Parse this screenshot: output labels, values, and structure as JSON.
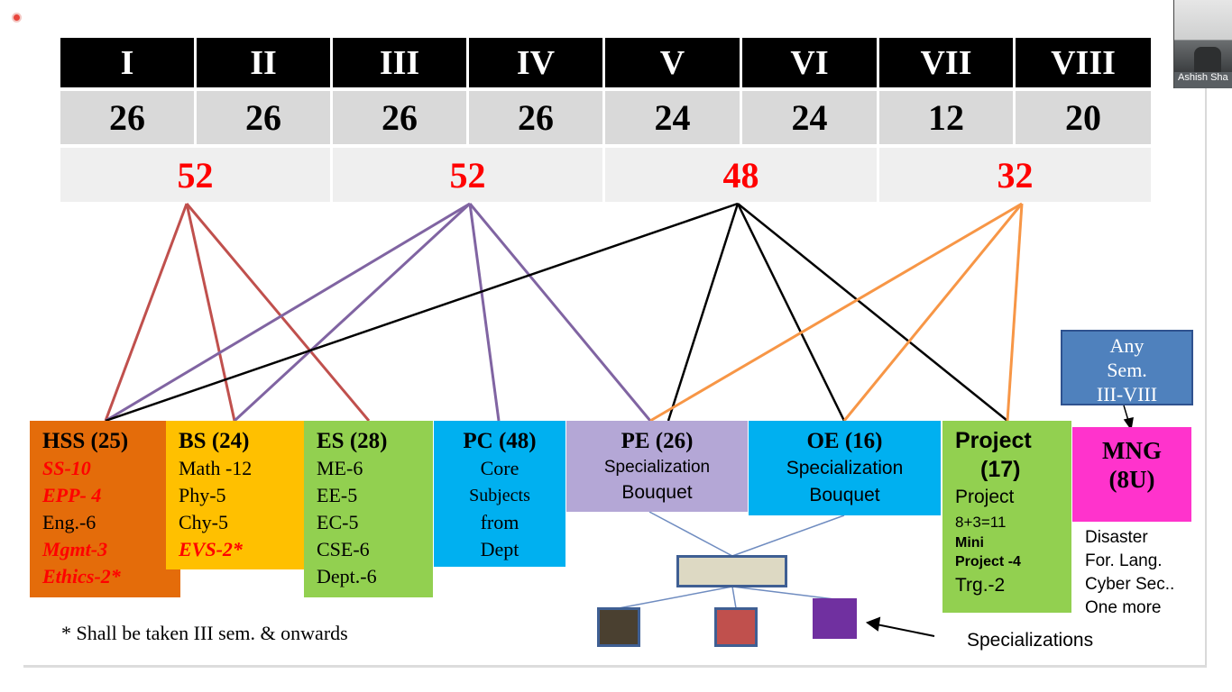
{
  "semesters": [
    "I",
    "II",
    "III",
    "IV",
    "V",
    "VI",
    "VII",
    "VIII"
  ],
  "credits": [
    "26",
    "26",
    "26",
    "26",
    "24",
    "24",
    "12",
    "20"
  ],
  "year_totals": [
    "52",
    "52",
    "48",
    "32"
  ],
  "categories": {
    "hss": {
      "title": "HSS (25)",
      "items": [
        "SS-10",
        "EPP- 4",
        "Eng.-6",
        "Mgmt-3",
        "Ethics-2*"
      ]
    },
    "bs": {
      "title": "BS (24)",
      "items": [
        "Math -12",
        "Phy-5",
        "Chy-5",
        "EVS-2*"
      ]
    },
    "es": {
      "title": "ES (28)",
      "items": [
        "ME-6",
        "EE-5",
        "EC-5",
        "CSE-6",
        "Dept.-6"
      ]
    },
    "pc": {
      "title": "PC (48)",
      "items": [
        "Core",
        "Subjects",
        "from",
        "Dept"
      ]
    },
    "pe": {
      "title": "PE (26)",
      "items": [
        "Specialization",
        "Bouquet"
      ]
    },
    "oe": {
      "title": "OE (16)",
      "items": [
        "Specialization",
        "Bouquet"
      ]
    },
    "project": {
      "title1": "Project",
      "title2": "(17)",
      "items": [
        "Project",
        "8+3=11",
        "Mini",
        "Project -4",
        "Trg.-2"
      ]
    },
    "mng": {
      "title1": "MNG",
      "title2": "(8U)"
    }
  },
  "any_sem": {
    "lines": [
      "Any",
      "Sem.",
      "III-VIII"
    ]
  },
  "mng_list": [
    "Disaster",
    "For. Lang.",
    "Cyber Sec..",
    "One more"
  ],
  "footnote": "* Shall be taken III sem. & onwards",
  "specializations_label": "Specializations",
  "participant_name": "Ashish Sha",
  "colors": {
    "hss": "#e46c0a",
    "bs": "#ffc000",
    "es": "#92d050",
    "pc": "#00b0f0",
    "pe": "#b4a7d6",
    "oe": "#00b0f0",
    "project": "#92d050",
    "mng": "#ff33cc",
    "any_sem": "#4f81bd",
    "line_red": "#c0504d",
    "line_purple": "#8064a2",
    "line_black": "#000000",
    "line_orange": "#f79646",
    "spec_brown": "#4a4030",
    "spec_red": "#c0504d",
    "spec_purple": "#7030a0"
  }
}
